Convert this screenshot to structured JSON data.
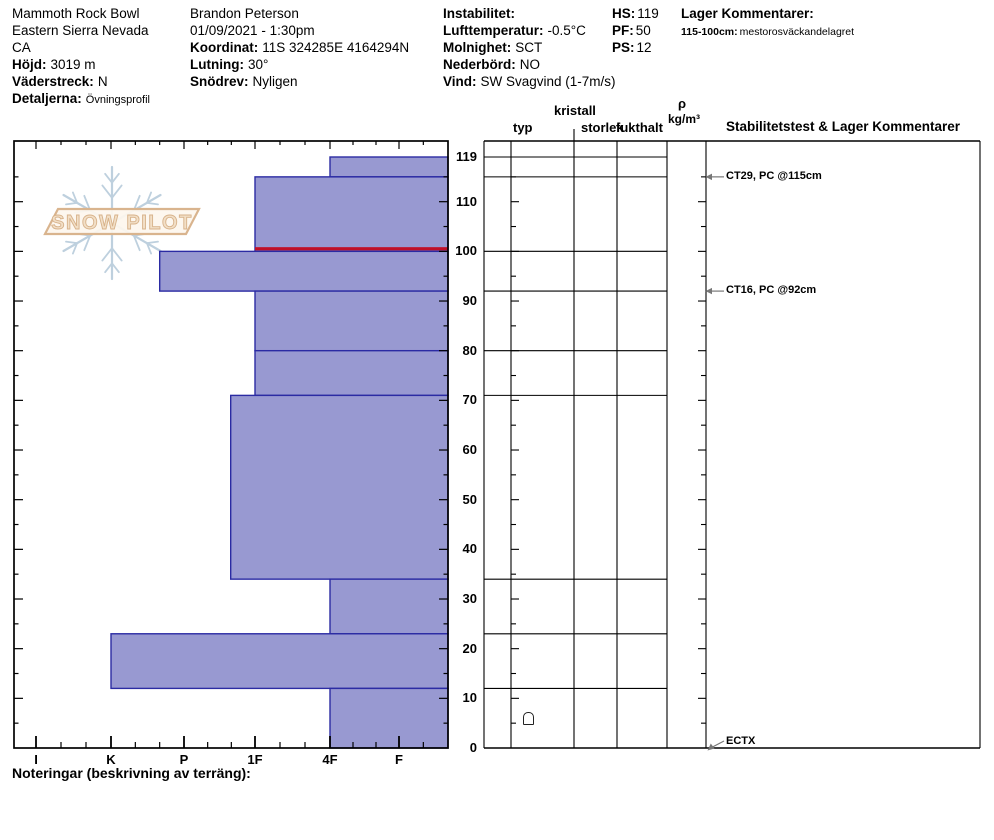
{
  "header": {
    "site": {
      "name": "Mammoth Rock Bowl",
      "range": "Eastern Sierra Nevada",
      "state": "CA",
      "elevation_label": "Höjd:",
      "elevation_value": "3019 m",
      "aspect_label": "Väderstreck:",
      "aspect_value": "N",
      "details_label": "Detaljerna:",
      "details_value": "Övningsprofil"
    },
    "observer": {
      "name": "Brandon Peterson",
      "datetime": "01/09/2021 - 1:30pm",
      "coord_label": "Koordinat:",
      "coord_value": "11S 324285E 4164294N",
      "slope_label": "Lutning:",
      "slope_value": "30°",
      "drift_label": "Snödrev:",
      "drift_value": "Nyligen"
    },
    "weather": {
      "instability_label": "Instabilitet:",
      "instability_value": "",
      "airtemp_label": "Lufttemperatur:",
      "airtemp_value": "-0.5°C",
      "sky_label": "Molnighet:",
      "sky_value": "SCT",
      "precip_label": "Nederbörd:",
      "precip_value": "NO",
      "wind_label": "Vind:",
      "wind_value": "SW Svagvind (1-7m/s)"
    },
    "snowpack": {
      "hs_label": "HS:",
      "hs_value": "119",
      "pf_label": "PF:",
      "pf_value": "50",
      "ps_label": "PS:",
      "ps_value": "12"
    },
    "layer_comments": {
      "title": "Lager Kommentarer:",
      "range_label": "115-100cm:",
      "comment": "mestorosväckandelagret"
    }
  },
  "table_headers": {
    "typ": "typ",
    "kristall": "kristall",
    "storlek": "storlek",
    "fukthalt": "fukthalt",
    "rho": "ρ",
    "rho_unit": "kg/m³",
    "stability": "Stabilitetstest & Lager Kommentarer"
  },
  "footer": {
    "notes_label": "Noteringar (beskrivning av terräng):"
  },
  "chart_data": {
    "type": "bar",
    "subtype": "snow-hardness-profile",
    "orientation": "horizontal",
    "title": "",
    "depth_axis": {
      "unit": "cm",
      "min": 0,
      "max": 119,
      "labeled_ticks": [
        119,
        110,
        100,
        90,
        80,
        70,
        60,
        50,
        40,
        30,
        20,
        10,
        0
      ]
    },
    "hardness_axis": {
      "categories": [
        "I",
        "K",
        "P",
        "1F",
        "4F",
        "F"
      ]
    },
    "total_depth_cm": 119,
    "layers": [
      {
        "top_cm": 119,
        "bottom_cm": 115,
        "hardness": "4F"
      },
      {
        "top_cm": 115,
        "bottom_cm": 100,
        "hardness": "1F",
        "layer_of_concern": true
      },
      {
        "top_cm": 100,
        "bottom_cm": 92,
        "hardness": "P+"
      },
      {
        "top_cm": 92,
        "bottom_cm": 80,
        "hardness": "1F"
      },
      {
        "top_cm": 80,
        "bottom_cm": 71,
        "hardness": "1F"
      },
      {
        "top_cm": 71,
        "bottom_cm": 34,
        "hardness": "1F+"
      },
      {
        "top_cm": 34,
        "bottom_cm": 23,
        "hardness": "4F"
      },
      {
        "top_cm": 23,
        "bottom_cm": 12,
        "hardness": "K"
      },
      {
        "top_cm": 12,
        "bottom_cm": 0,
        "hardness": "4F"
      }
    ],
    "grain_symbols": [
      {
        "depth_cm": 6,
        "symbol": "melt-forms"
      }
    ],
    "stability_tests": [
      {
        "label": "CT29, PC @115cm",
        "depth_cm": 115
      },
      {
        "label": "CT16, PC @92cm",
        "depth_cm": 92
      },
      {
        "label": "ECTX",
        "depth_cm": 0
      }
    ],
    "colors": {
      "bar_fill": "#9899d1",
      "bar_border": "#2b2ba3",
      "concern_line": "#c01028",
      "grid": "#000000",
      "test_arrow": "#777777",
      "logo_snowflake": "#bed0de",
      "logo_banner": "#d9b48e"
    },
    "watermark": "SNOW PILOT"
  }
}
